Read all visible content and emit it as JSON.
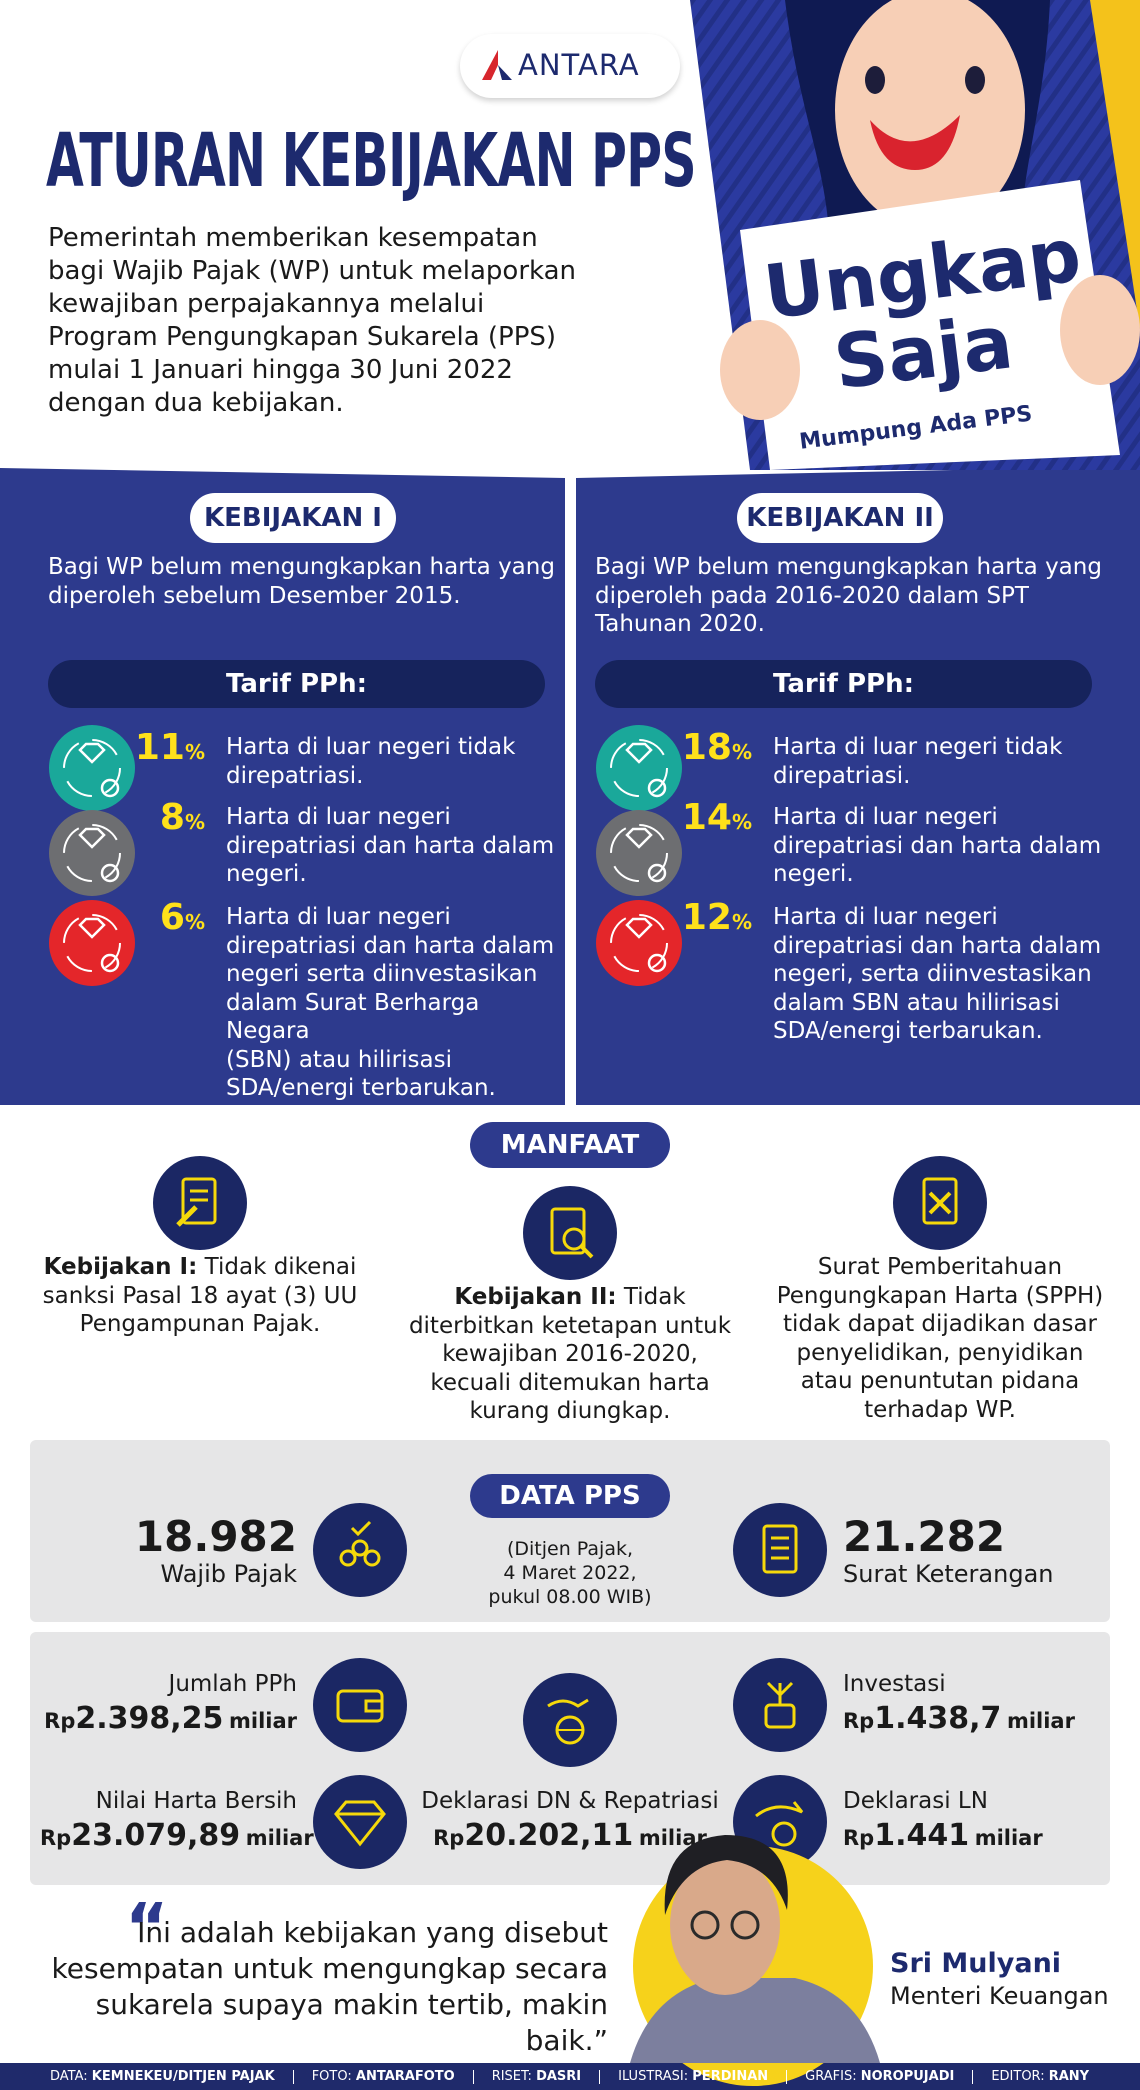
{
  "logo": "ANTARA",
  "header": {
    "title": "ATURAN KEBIJAKAN PPS",
    "intro": "Pemerintah memberikan kesempatan\nbagi Wajib Pajak (WP) untuk melaporkan\nkewajiban perpajakannya melalui\nProgram Pengungkapan Sukarela (PPS)\nmulai 1 Januari hingga 30 Juni 2022\ndengan dua kebijakan."
  },
  "hero": {
    "headline_1": "Ungkap",
    "headline_2": "Saja",
    "tagline": "Mumpung Ada PPS"
  },
  "policies": [
    {
      "label": "KEBIJAKAN I",
      "description": "Bagi WP belum mengungkapkan harta yang\ndiperoleh sebelum Desember 2015.",
      "tariff_heading": "Tarif PPh:",
      "rates": [
        {
          "value": "11",
          "unit": "%",
          "text": "Harta di luar negeri tidak\ndirepatriasi."
        },
        {
          "value": "8",
          "unit": "%",
          "text": "Harta di luar negeri\ndirepatriasi dan harta dalam\nnegeri."
        },
        {
          "value": "6",
          "unit": "%",
          "text": "Harta di luar negeri\ndirepatriasi dan harta dalam\nnegeri serta diinvestasikan\ndalam Surat Berharga Negara\n(SBN) atau hilirisasi\nSDA/energi terbarukan."
        }
      ]
    },
    {
      "label": "KEBIJAKAN II",
      "description": "Bagi WP belum mengungkapkan harta yang\ndiperoleh pada 2016-2020 dalam SPT\nTahunan 2020.",
      "tariff_heading": "Tarif PPh:",
      "rates": [
        {
          "value": "18",
          "unit": "%",
          "text": "Harta di luar negeri tidak\ndirepatriasi."
        },
        {
          "value": "14",
          "unit": "%",
          "text": "Harta di luar negeri\ndirepatriasi dan harta dalam\nnegeri."
        },
        {
          "value": "12",
          "unit": "%",
          "text": "Harta di luar negeri\ndirepatriasi dan harta dalam\nnegeri, serta diinvestasikan\ndalam SBN atau hilirisasi\nSDA/energi terbarukan."
        }
      ]
    }
  ],
  "benefits": {
    "heading": "MANFAAT",
    "items": [
      {
        "lead": "Kebijakan I:",
        "text": " Tidak dikenai\nsanksi Pasal 18 ayat (3) UU\nPengampunan Pajak."
      },
      {
        "lead": "Kebijakan II:",
        "text": " Tidak\nditerbitkan ketetapan untuk\nkewajiban 2016-2020,\nkecuali ditemukan harta\nkurang diungkap."
      },
      {
        "text": "Surat Pemberitahuan\nPengungkapan Harta (SPPH)\ntidak dapat dijadikan dasar\npenyelidikan, penyidikan\natau penuntutan pidana\nterhadap WP."
      }
    ]
  },
  "data_pps": {
    "heading": "DATA PPS",
    "source": "(Ditjen Pajak,\n4 Maret 2022,\npukul 08.00 WIB)",
    "taxpayers": {
      "value": "18.982",
      "label": "Wajib Pajak"
    },
    "certificates": {
      "value": "21.282",
      "label": "Surat Keterangan"
    }
  },
  "amounts": [
    {
      "label": "Jumlah PPh",
      "prefix": "Rp",
      "value": "2.398,25",
      "suffix": "miliar"
    },
    {
      "label": "Nilai Harta Bersih",
      "prefix": "Rp",
      "value": "23.079,89",
      "suffix": "miliar"
    },
    {
      "label": "Deklarasi DN & Repatriasi",
      "prefix": "Rp",
      "value": "20.202,11",
      "suffix": "miliar"
    },
    {
      "label": "Investasi",
      "prefix": "Rp",
      "value": "1.438,7",
      "suffix": "miliar"
    },
    {
      "label": "Deklarasi LN",
      "prefix": "Rp",
      "value": "1.441",
      "suffix": "miliar"
    }
  ],
  "quote": {
    "mark": "“",
    "text": "Ini adalah kebijakan yang disebut\nkesempatan untuk mengungkap secara\nsukarela supaya makin tertib, makin baik.”",
    "speaker": "Sri Mulyani",
    "role": "Menteri Keuangan"
  },
  "credits": [
    {
      "label": "DATA:",
      "value": "KEMNEKEU/DITJEN PAJAK"
    },
    {
      "label": "FOTO:",
      "value": "ANTARAFOTO"
    },
    {
      "label": "RISET:",
      "value": "DASRI"
    },
    {
      "label": "ILUSTRASI:",
      "value": "PERDINAN"
    },
    {
      "label": "GRAFIS:",
      "value": "NOROPUJADI"
    },
    {
      "label": "EDITOR:",
      "value": "RANY"
    }
  ]
}
